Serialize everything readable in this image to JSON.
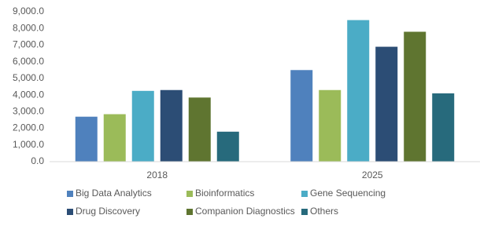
{
  "chart_data": {
    "type": "bar",
    "categories": [
      "2018",
      "2025"
    ],
    "series": [
      {
        "name": "Big Data Analytics",
        "color": "#4f81bd",
        "values": [
          2700,
          5500
        ]
      },
      {
        "name": "Bioinformatics",
        "color": "#9bbb59",
        "values": [
          2850,
          4300
        ]
      },
      {
        "name": "Gene Sequencing",
        "color": "#4bacc6",
        "values": [
          4250,
          8500
        ]
      },
      {
        "name": "Drug Discovery",
        "color": "#2c4d75",
        "values": [
          4300,
          6900
        ]
      },
      {
        "name": "Companion Diagnostics",
        "color": "#5f7530",
        "values": [
          3850,
          7800
        ]
      },
      {
        "name": "Others",
        "color": "#276a7c",
        "values": [
          1800,
          4100
        ]
      }
    ],
    "ylim": [
      0,
      9000
    ],
    "yticks": [
      {
        "value": 0,
        "label": "0.0"
      },
      {
        "value": 1000,
        "label": "1,000.0"
      },
      {
        "value": 2000,
        "label": "2,000.0"
      },
      {
        "value": 3000,
        "label": "3,000.0"
      },
      {
        "value": 4000,
        "label": "4,000.0"
      },
      {
        "value": 5000,
        "label": "5,000.0"
      },
      {
        "value": 6000,
        "label": "6,000.0"
      },
      {
        "value": 7000,
        "label": "7,000.0"
      },
      {
        "value": 8000,
        "label": "8,000.0"
      },
      {
        "value": 9000,
        "label": "9,000.0"
      }
    ],
    "grid": false
  }
}
